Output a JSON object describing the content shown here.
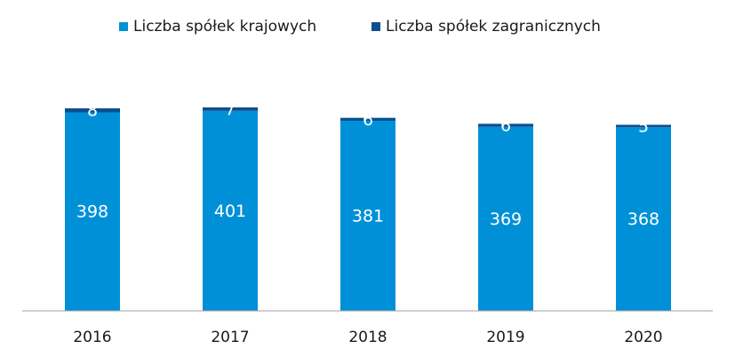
{
  "chart_data": {
    "type": "bar",
    "stacked": true,
    "categories": [
      "2016",
      "2017",
      "2018",
      "2019",
      "2020"
    ],
    "series": [
      {
        "name": "Liczba spółek krajowych",
        "values": [
          398,
          401,
          381,
          369,
          368
        ],
        "color": "#0090D8"
      },
      {
        "name": "Liczba spółek zagranicznych",
        "values": [
          8,
          7,
          6,
          6,
          5
        ],
        "color": "#0B4F8E"
      }
    ],
    "ylim": [
      0,
      420
    ],
    "grid": false,
    "legend_position": "top"
  }
}
